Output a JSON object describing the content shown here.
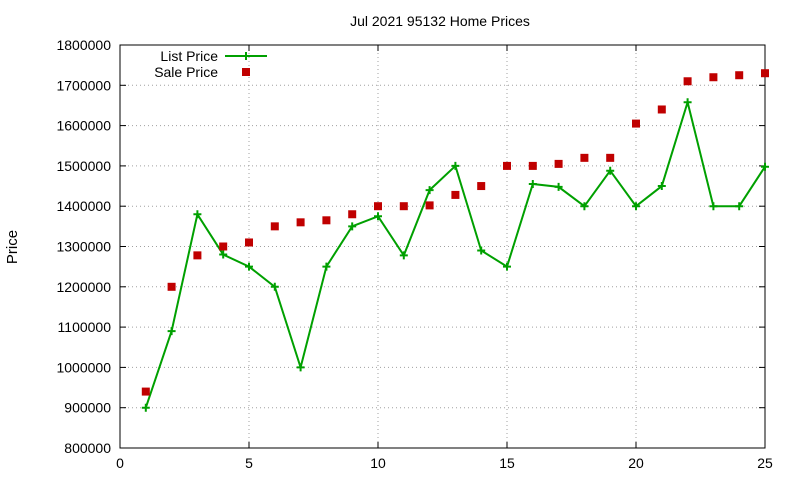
{
  "chart_data": {
    "type": "line",
    "title": "Jul 2021 95132 Home Prices",
    "xlabel": "",
    "ylabel": "Price",
    "xlim": [
      0,
      25
    ],
    "ylim": [
      800000,
      1800000
    ],
    "xticks": [
      0,
      5,
      10,
      15,
      20,
      25
    ],
    "yticks": [
      800000,
      900000,
      1000000,
      1100000,
      1200000,
      1300000,
      1400000,
      1500000,
      1600000,
      1700000,
      1800000
    ],
    "grid": true,
    "legend": "top-left",
    "series": [
      {
        "name": "List Price",
        "style": "line-with-plus-markers",
        "color": "#00a000",
        "x": [
          1,
          2,
          3,
          4,
          5,
          6,
          7,
          8,
          9,
          10,
          11,
          12,
          13,
          14,
          15,
          16,
          17,
          18,
          19,
          20,
          21,
          22,
          23,
          24,
          25
        ],
        "y": [
          900000,
          1090000,
          1380000,
          1280000,
          1250000,
          1200000,
          1000000,
          1250000,
          1350000,
          1375000,
          1278000,
          1440000,
          1500000,
          1290000,
          1250000,
          1455000,
          1448000,
          1400000,
          1488000,
          1400000,
          1450000,
          1658000,
          1400000,
          1400000,
          1498000
        ]
      },
      {
        "name": "Sale Price",
        "style": "square-markers",
        "color": "#c00000",
        "x": [
          1,
          2,
          3,
          4,
          5,
          6,
          7,
          8,
          9,
          10,
          11,
          12,
          13,
          14,
          15,
          16,
          17,
          18,
          19,
          20,
          21,
          22,
          23,
          24,
          25
        ],
        "y": [
          940000,
          1200000,
          1278000,
          1300000,
          1310000,
          1350000,
          1360000,
          1365000,
          1380000,
          1400000,
          1400000,
          1402000,
          1428000,
          1450000,
          1500000,
          1500000,
          1505000,
          1520000,
          1520000,
          1605000,
          1640000,
          1710000,
          1720000,
          1725000,
          1730000
        ]
      }
    ]
  }
}
